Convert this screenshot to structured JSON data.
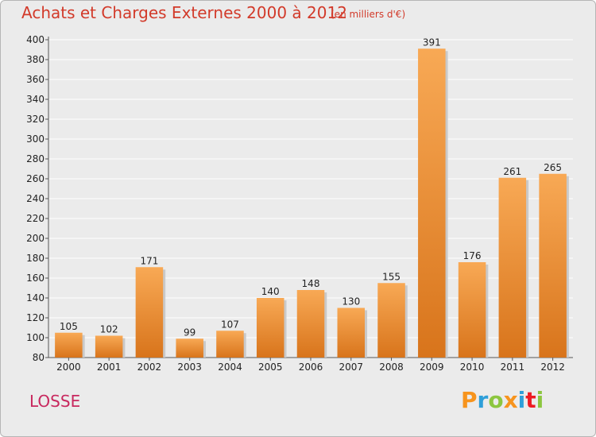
{
  "header": {
    "title": "Achats et Charges Externes 2000 à 2012",
    "subtitle": "(en milliers d'€)"
  },
  "footer": {
    "commune": "LOSSE",
    "brand": "Proxiti",
    "brand_colors": [
      "#f7941d",
      "#2e9fd9",
      "#8cc63f",
      "#f7941d",
      "#2e9fd9",
      "#ed1c24",
      "#8cc63f"
    ]
  },
  "colors": {
    "title": "#d23a2a",
    "commune": "#c8285e",
    "bar_light": "#f8a955",
    "bar_dark": "#d8741b",
    "grid": "#ffffff",
    "background": "#ebebeb"
  },
  "chart_data": {
    "type": "bar",
    "title": "Achats et Charges Externes 2000 à 2012",
    "subtitle": "(en milliers d'€)",
    "categories": [
      "2000",
      "2001",
      "2002",
      "2003",
      "2004",
      "2005",
      "2006",
      "2007",
      "2008",
      "2009",
      "2010",
      "2011",
      "2012"
    ],
    "values": [
      105,
      102,
      171,
      99,
      107,
      140,
      148,
      130,
      155,
      391,
      176,
      261,
      265
    ],
    "ylim": [
      80,
      400
    ],
    "yticks": [
      80,
      100,
      120,
      140,
      160,
      180,
      200,
      220,
      240,
      260,
      280,
      300,
      320,
      340,
      360,
      380,
      400
    ],
    "grid": true,
    "legend": "none"
  }
}
